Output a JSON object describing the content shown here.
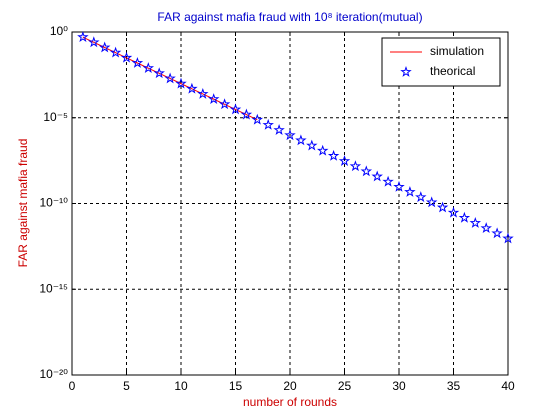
{
  "chart_data": {
    "type": "line",
    "title": "FAR against mafia fraud with 10⁸ iteration(mutual)",
    "xlabel": "number of rounds",
    "ylabel": "FAR against mafia fraud",
    "x": [
      1,
      2,
      3,
      4,
      5,
      6,
      7,
      8,
      9,
      10,
      11,
      12,
      13,
      14,
      15,
      16,
      17,
      18,
      19,
      20,
      21,
      22,
      23,
      24,
      25,
      26,
      27,
      28,
      29,
      30,
      31,
      32,
      33,
      34,
      35,
      36,
      37,
      38,
      39,
      40
    ],
    "series": [
      {
        "name": "simulation",
        "color": "#ff0000",
        "marker": "none",
        "values": [
          0.5,
          0.25,
          0.125,
          0.0625,
          0.0313,
          0.0156,
          0.00781,
          0.00391,
          0.00195,
          0.000977,
          0.000488,
          0.000244,
          0.000122,
          6.1e-05,
          3.05e-05,
          1.53e-05,
          7.6e-06,
          null,
          null,
          null,
          null,
          null,
          null,
          null,
          null,
          null,
          null,
          null,
          null,
          null,
          null,
          null,
          null,
          null,
          null,
          null,
          null,
          null,
          null,
          null
        ]
      },
      {
        "name": "theorical",
        "color": "#0000ff",
        "marker": "pentagram",
        "values": [
          0.5,
          0.25,
          0.125,
          0.0625,
          0.0313,
          0.0156,
          0.00781,
          0.00391,
          0.00195,
          0.000977,
          0.000488,
          0.000244,
          0.000122,
          6.1e-05,
          3.05e-05,
          1.53e-05,
          7.63e-06,
          3.81e-06,
          1.91e-06,
          9.54e-07,
          4.77e-07,
          2.38e-07,
          1.19e-07,
          5.96e-08,
          2.98e-08,
          1.49e-08,
          7.45e-09,
          3.73e-09,
          1.86e-09,
          9.31e-10,
          4.66e-10,
          2.33e-10,
          1.16e-10,
          5.82e-11,
          2.91e-11,
          1.46e-11,
          7.28e-12,
          3.64e-12,
          1.82e-12,
          9.09e-13
        ]
      }
    ],
    "xlim": [
      0,
      40
    ],
    "xticks": [
      0,
      5,
      10,
      15,
      20,
      25,
      30,
      35,
      40
    ],
    "ylim": [
      1e-20,
      1
    ],
    "yscale": "log",
    "yticks": [
      {
        "value": 1e-20,
        "label": "10⁻²⁰"
      },
      {
        "value": 1e-15,
        "label": "10⁻¹⁵"
      },
      {
        "value": 1e-10,
        "label": "10⁻¹⁰"
      },
      {
        "value": 1e-05,
        "label": "10⁻⁵"
      },
      {
        "value": 1,
        "label": "10⁰"
      }
    ],
    "grid": true,
    "legend": "upper right"
  }
}
